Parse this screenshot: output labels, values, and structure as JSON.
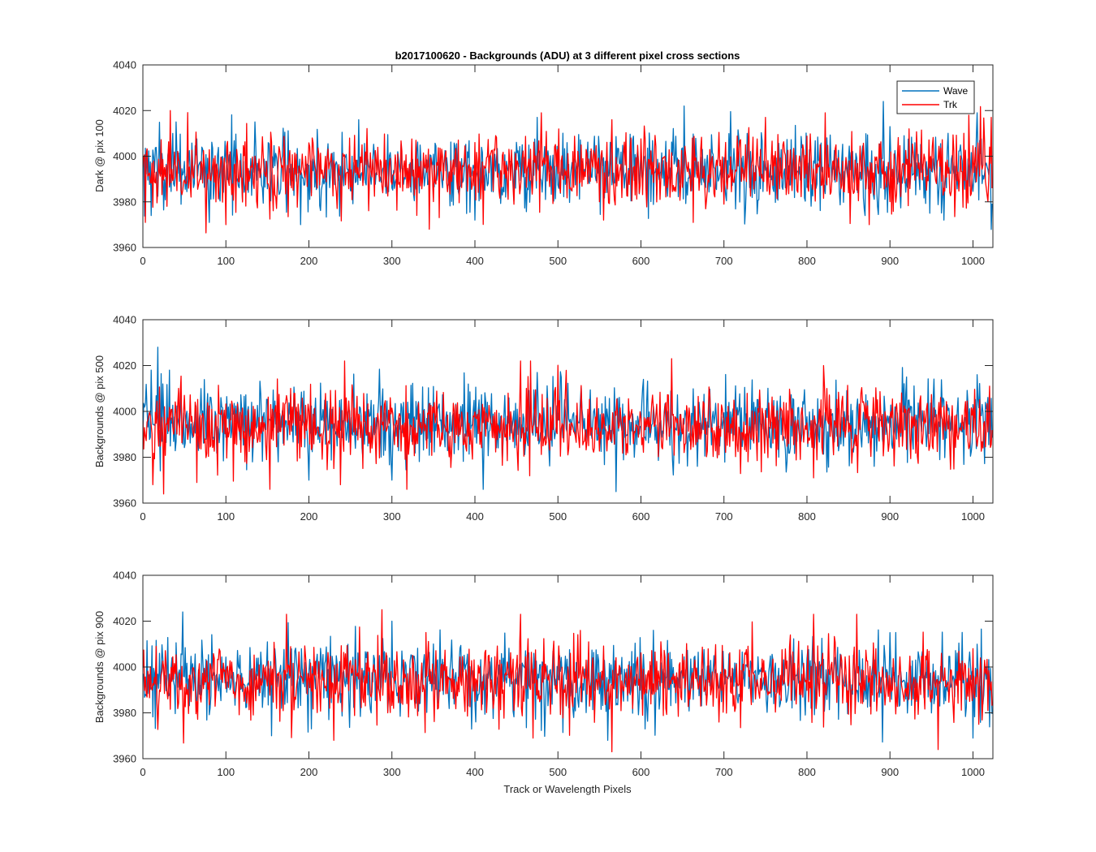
{
  "figure": {
    "title": "b2017100620 - Backgrounds (ADU) at 3 different pixel cross sections",
    "xlabel": "Track or Wavelength Pixels"
  },
  "colors": {
    "wave": "#0072BD",
    "trk": "#FF0000",
    "axes": "#262626"
  },
  "chart_data": [
    {
      "type": "line",
      "title": "b2017100620 - Backgrounds (ADU) at 3 different pixel cross sections",
      "xlabel": "",
      "ylabel": "Dark @ pix 100",
      "xlim": [
        0,
        1024
      ],
      "ylim": [
        3960,
        4040
      ],
      "xticks": [
        0,
        100,
        200,
        300,
        400,
        500,
        600,
        700,
        800,
        900,
        1000
      ],
      "yticks": [
        3960,
        3980,
        4000,
        4020,
        4040
      ],
      "legend": {
        "position": "top-right",
        "entries": [
          "Wave",
          "Trk"
        ]
      },
      "grid": false,
      "series": [
        {
          "name": "Wave",
          "color": "#0072BD",
          "mean": 3994,
          "std": 8,
          "n": 1024,
          "peaks": [
            [
              5,
              4003
            ],
            [
              40,
              4015
            ],
            [
              135,
              4015
            ],
            [
              260,
              4016
            ],
            [
              475,
              4017
            ],
            [
              652,
              4022
            ],
            [
              892,
              4024
            ],
            [
              1005,
              4019
            ]
          ],
          "troughs": [
            [
              10,
              3974
            ],
            [
              80,
              3971
            ],
            [
              190,
              3970
            ],
            [
              400,
              3972
            ],
            [
              870,
              3974
            ],
            [
              965,
              3972
            ]
          ]
        },
        {
          "name": "Trk",
          "color": "#FF0000",
          "mean": 3994,
          "std": 8,
          "n": 1024,
          "peaks": [
            [
              33,
              4020
            ],
            [
              345,
              4018
            ],
            [
              480,
              4019
            ],
            [
              565,
              4016
            ],
            [
              750,
              4017
            ],
            [
              822,
              4019
            ],
            [
              995,
              4018
            ],
            [
              1022,
              4017
            ]
          ],
          "troughs": [
            [
              3,
              3971
            ],
            [
              100,
              3970
            ],
            [
              345,
              3968
            ],
            [
              555,
              3972
            ],
            [
              663,
              3971
            ],
            [
              875,
              3970
            ]
          ]
        }
      ]
    },
    {
      "type": "line",
      "title": "",
      "xlabel": "",
      "ylabel": "Backgrounds @ pix 500",
      "xlim": [
        0,
        1024
      ],
      "ylim": [
        3960,
        4040
      ],
      "xticks": [
        0,
        100,
        200,
        300,
        400,
        500,
        600,
        700,
        800,
        900,
        1000
      ],
      "yticks": [
        3960,
        3980,
        4000,
        4020,
        4040
      ],
      "grid": false,
      "series": [
        {
          "name": "Wave",
          "color": "#0072BD",
          "mean": 3995,
          "std": 8,
          "n": 1024,
          "peaks": [
            [
              10,
              4018
            ],
            [
              18,
              4028
            ],
            [
              32,
              4018
            ],
            [
              475,
              4017
            ],
            [
              920,
              4015
            ],
            [
              1005,
              4016
            ]
          ],
          "troughs": [
            [
              410,
              3966
            ],
            [
              570,
              3965
            ],
            [
              300,
              3970
            ],
            [
              200,
              3970
            ]
          ]
        },
        {
          "name": "Trk",
          "color": "#FF0000",
          "mean": 3994,
          "std": 8,
          "n": 1024,
          "peaks": [
            [
              65,
              4019
            ],
            [
              243,
              4022
            ],
            [
              455,
              4022
            ],
            [
              637,
              4023
            ],
            [
              820,
              4020
            ],
            [
              1020,
              4011
            ]
          ],
          "troughs": [
            [
              12,
              3968
            ],
            [
              25,
              3964
            ],
            [
              65,
              3969
            ],
            [
              238,
              3968
            ],
            [
              808,
              3971
            ]
          ]
        }
      ]
    },
    {
      "type": "line",
      "title": "",
      "xlabel": "Track or Wavelength Pixels",
      "ylabel": "Backgrounds @ pix 900",
      "xlim": [
        0,
        1024
      ],
      "ylim": [
        3960,
        4040
      ],
      "xticks": [
        0,
        100,
        200,
        300,
        400,
        500,
        600,
        700,
        800,
        900,
        1000
      ],
      "yticks": [
        3960,
        3980,
        4000,
        4020,
        4040
      ],
      "grid": false,
      "series": [
        {
          "name": "Wave",
          "color": "#0072BD",
          "mean": 3995,
          "std": 8,
          "n": 1024,
          "peaks": [
            [
              48,
              4024
            ],
            [
              300,
              4020
            ],
            [
              615,
              4016
            ],
            [
              900,
              4015
            ]
          ],
          "troughs": [
            [
              155,
              3970
            ],
            [
              560,
              3968
            ],
            [
              1000,
              3969
            ]
          ]
        },
        {
          "name": "Trk",
          "color": "#FF0000",
          "mean": 3994,
          "std": 8,
          "n": 1024,
          "peaks": [
            [
              173,
              4023
            ],
            [
              288,
              4025
            ],
            [
              455,
              4023
            ],
            [
              808,
              4023
            ],
            [
              860,
              4023
            ]
          ],
          "troughs": [
            [
              230,
              3968
            ],
            [
              470,
              3969
            ],
            [
              565,
              3963
            ],
            [
              958,
              3964
            ]
          ]
        }
      ]
    }
  ]
}
